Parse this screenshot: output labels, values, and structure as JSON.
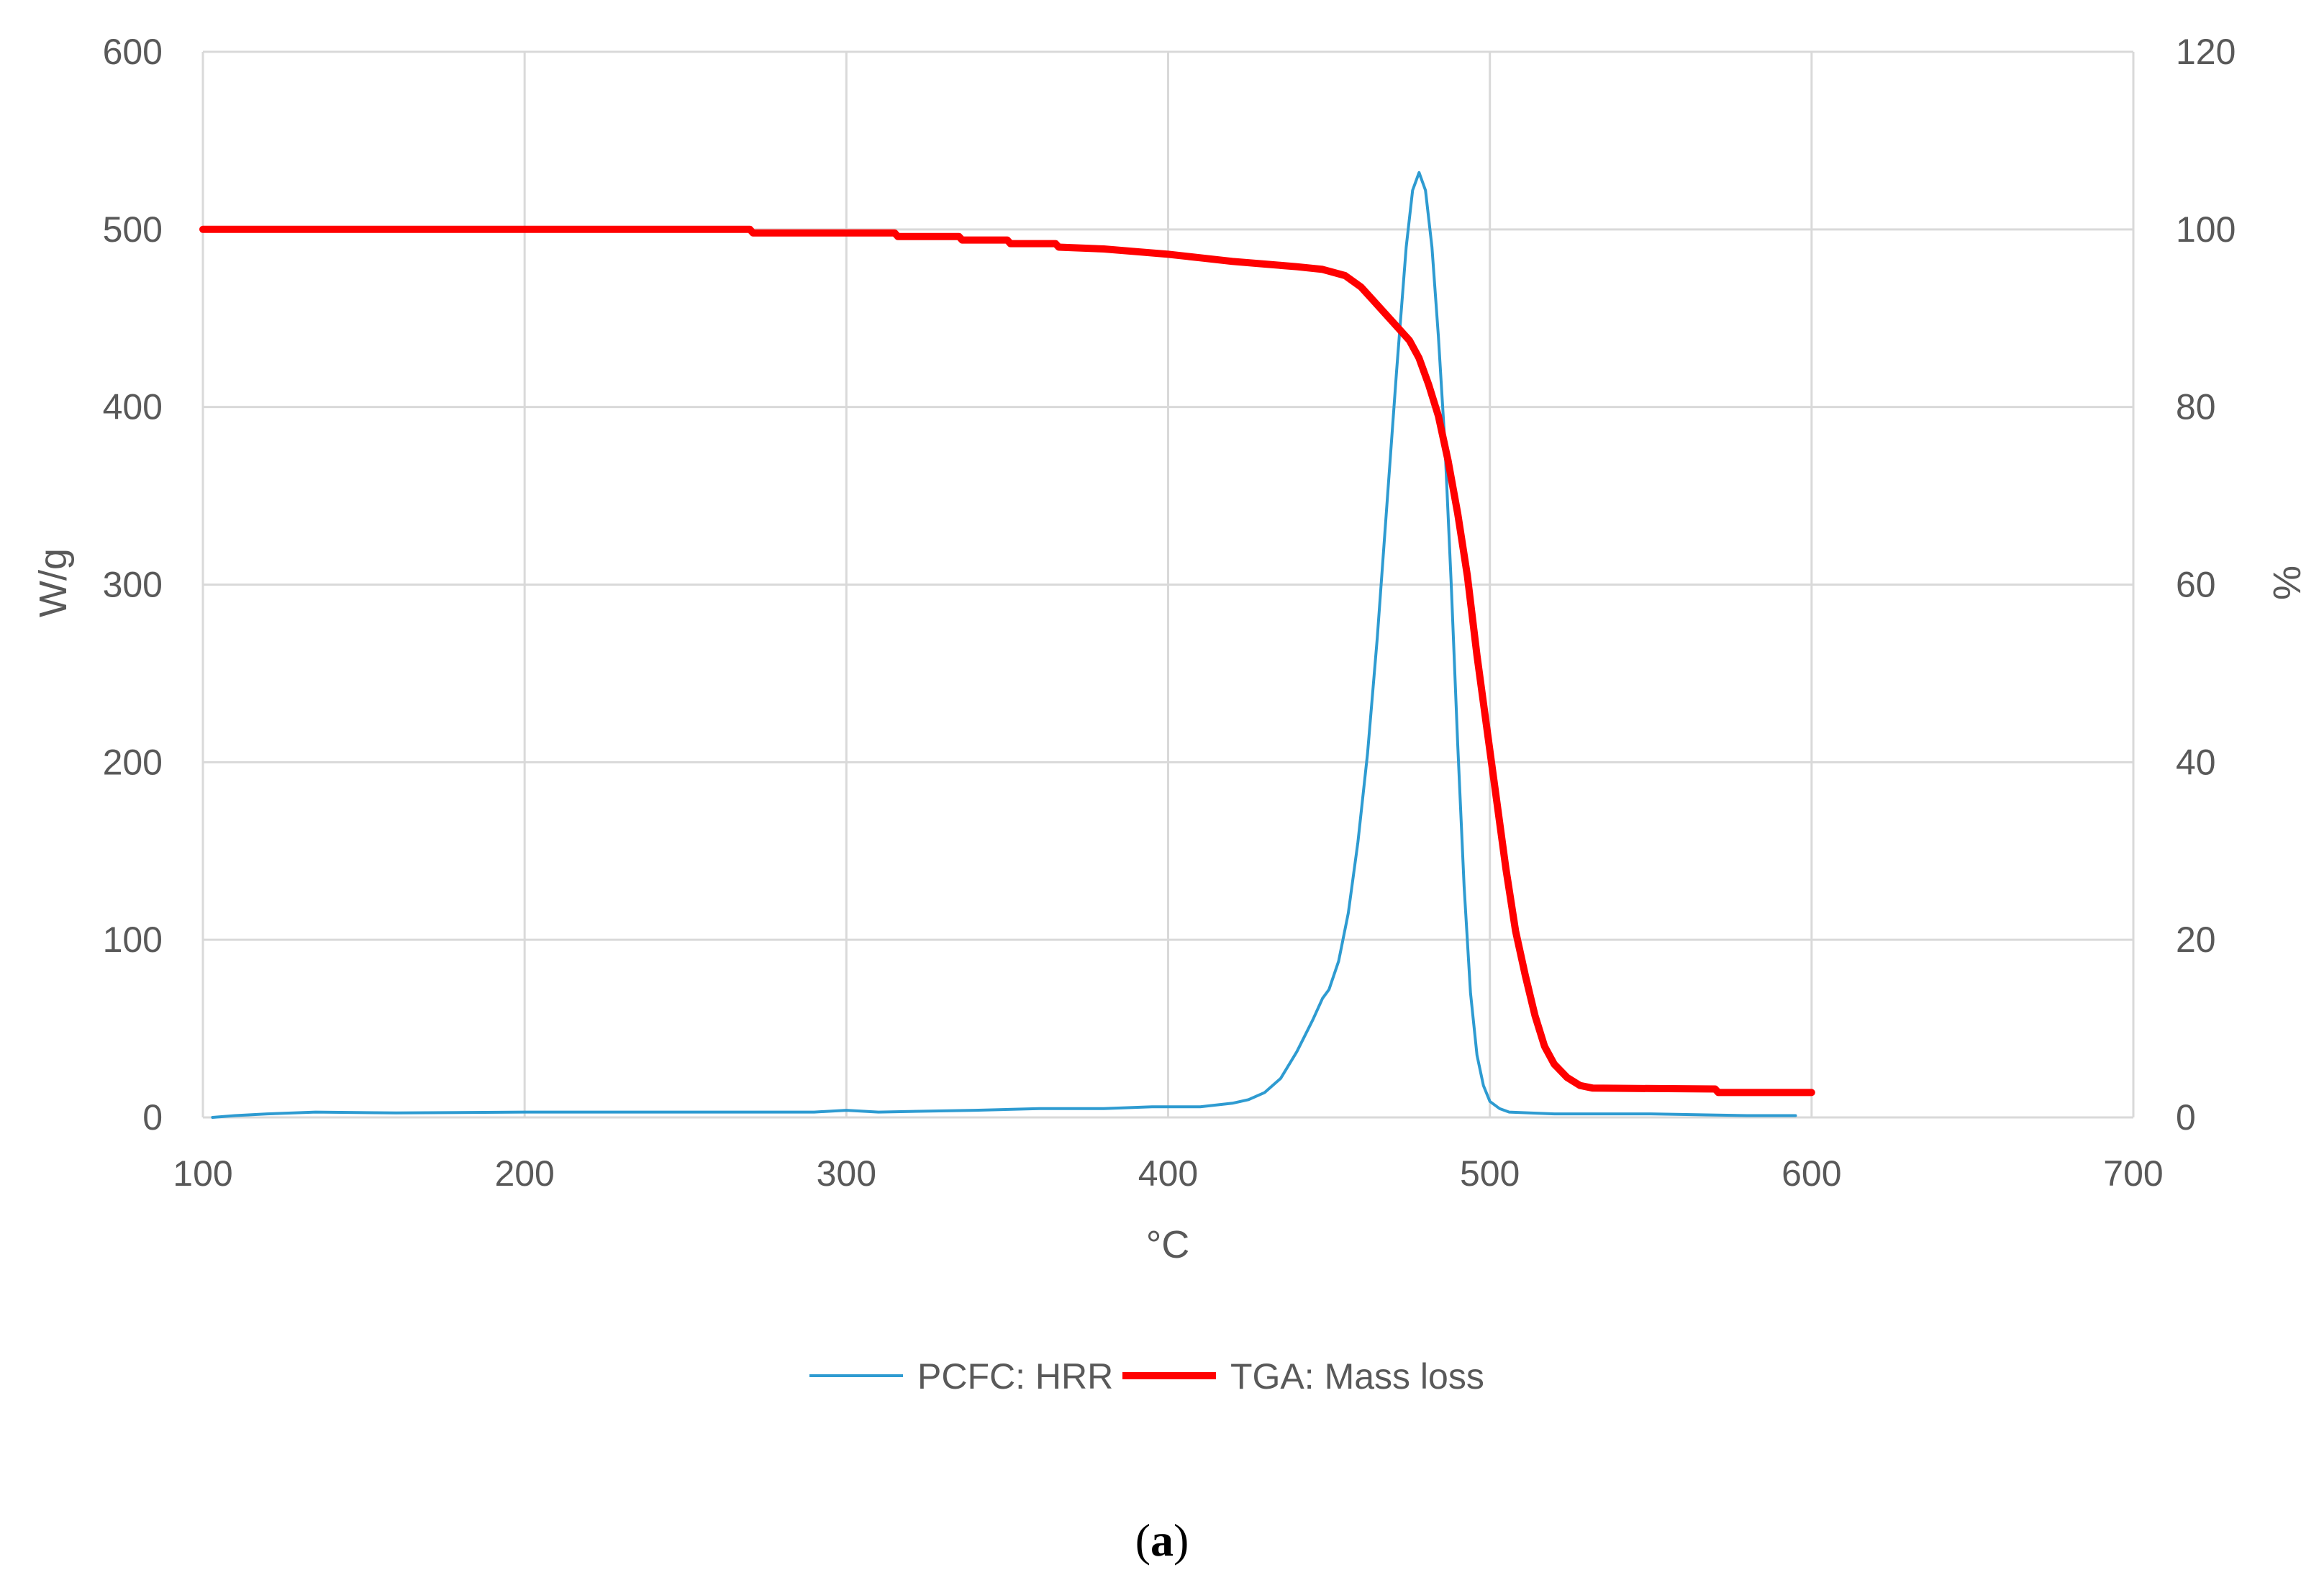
{
  "chart_data": {
    "type": "line",
    "caption": {
      "open": "(",
      "letter": "a",
      "close": ")"
    },
    "xlabel": "°C",
    "ylabel_left": "W/g",
    "ylabel_right": "%",
    "xlim": [
      100,
      700
    ],
    "ylim_left": [
      0,
      600
    ],
    "ylim_right": [
      0,
      120
    ],
    "x_ticks": [
      "100",
      "200",
      "300",
      "400",
      "500",
      "600",
      "700"
    ],
    "y_left_ticks": [
      "0",
      "100",
      "200",
      "300",
      "400",
      "500",
      "600"
    ],
    "y_right_ticks": [
      "0",
      "20",
      "40",
      "60",
      "80",
      "100",
      "120"
    ],
    "grid": true,
    "legend_position": "bottom",
    "series": [
      {
        "name": "PCFC: HRR",
        "axis": "left",
        "color": "#2E9BD1",
        "points": [
          [
            103,
            0
          ],
          [
            110,
            1
          ],
          [
            120,
            2
          ],
          [
            135,
            3
          ],
          [
            160,
            2.5
          ],
          [
            200,
            3
          ],
          [
            250,
            3
          ],
          [
            290,
            3
          ],
          [
            300,
            4
          ],
          [
            310,
            3
          ],
          [
            340,
            4
          ],
          [
            360,
            5
          ],
          [
            380,
            5
          ],
          [
            395,
            6
          ],
          [
            410,
            6
          ],
          [
            420,
            8
          ],
          [
            425,
            10
          ],
          [
            430,
            14
          ],
          [
            435,
            22
          ],
          [
            440,
            37
          ],
          [
            445,
            55
          ],
          [
            448,
            67
          ],
          [
            450,
            72
          ],
          [
            453,
            88
          ],
          [
            456,
            115
          ],
          [
            459,
            155
          ],
          [
            462,
            205
          ],
          [
            465,
            270
          ],
          [
            468,
            345
          ],
          [
            471,
            420
          ],
          [
            474,
            490
          ],
          [
            476,
            522
          ],
          [
            478,
            532
          ],
          [
            480,
            522
          ],
          [
            482,
            490
          ],
          [
            484,
            440
          ],
          [
            486,
            380
          ],
          [
            488,
            300
          ],
          [
            490,
            210
          ],
          [
            492,
            130
          ],
          [
            494,
            70
          ],
          [
            496,
            35
          ],
          [
            498,
            18
          ],
          [
            500,
            9
          ],
          [
            503,
            5
          ],
          [
            506,
            3
          ],
          [
            520,
            2
          ],
          [
            550,
            2
          ],
          [
            580,
            1
          ],
          [
            595,
            1
          ]
        ]
      },
      {
        "name": "TGA: Mass loss",
        "axis": "right",
        "color": "#FF0000",
        "points": [
          [
            100,
            100
          ],
          [
            270,
            100
          ],
          [
            271,
            99.6
          ],
          [
            315,
            99.6
          ],
          [
            316,
            99.2
          ],
          [
            335,
            99.2
          ],
          [
            336,
            98.8
          ],
          [
            350,
            98.8
          ],
          [
            351,
            98.4
          ],
          [
            365,
            98.4
          ],
          [
            366,
            98
          ],
          [
            380,
            97.8
          ],
          [
            390,
            97.5
          ],
          [
            400,
            97.2
          ],
          [
            410,
            96.8
          ],
          [
            420,
            96.4
          ],
          [
            430,
            96.1
          ],
          [
            440,
            95.8
          ],
          [
            448,
            95.5
          ],
          [
            455,
            94.8
          ],
          [
            460,
            93.5
          ],
          [
            465,
            91.5
          ],
          [
            470,
            89.5
          ],
          [
            475,
            87.5
          ],
          [
            478,
            85.5
          ],
          [
            481,
            82.5
          ],
          [
            484,
            79
          ],
          [
            487,
            74
          ],
          [
            490,
            68
          ],
          [
            493,
            61
          ],
          [
            496,
            52
          ],
          [
            499,
            44
          ],
          [
            502,
            36
          ],
          [
            505,
            28
          ],
          [
            508,
            21
          ],
          [
            511,
            16
          ],
          [
            514,
            11.5
          ],
          [
            517,
            8
          ],
          [
            520,
            6
          ],
          [
            524,
            4.5
          ],
          [
            528,
            3.6
          ],
          [
            532,
            3.3
          ],
          [
            570,
            3.2
          ],
          [
            571,
            2.8
          ],
          [
            600,
            2.8
          ]
        ]
      }
    ]
  }
}
